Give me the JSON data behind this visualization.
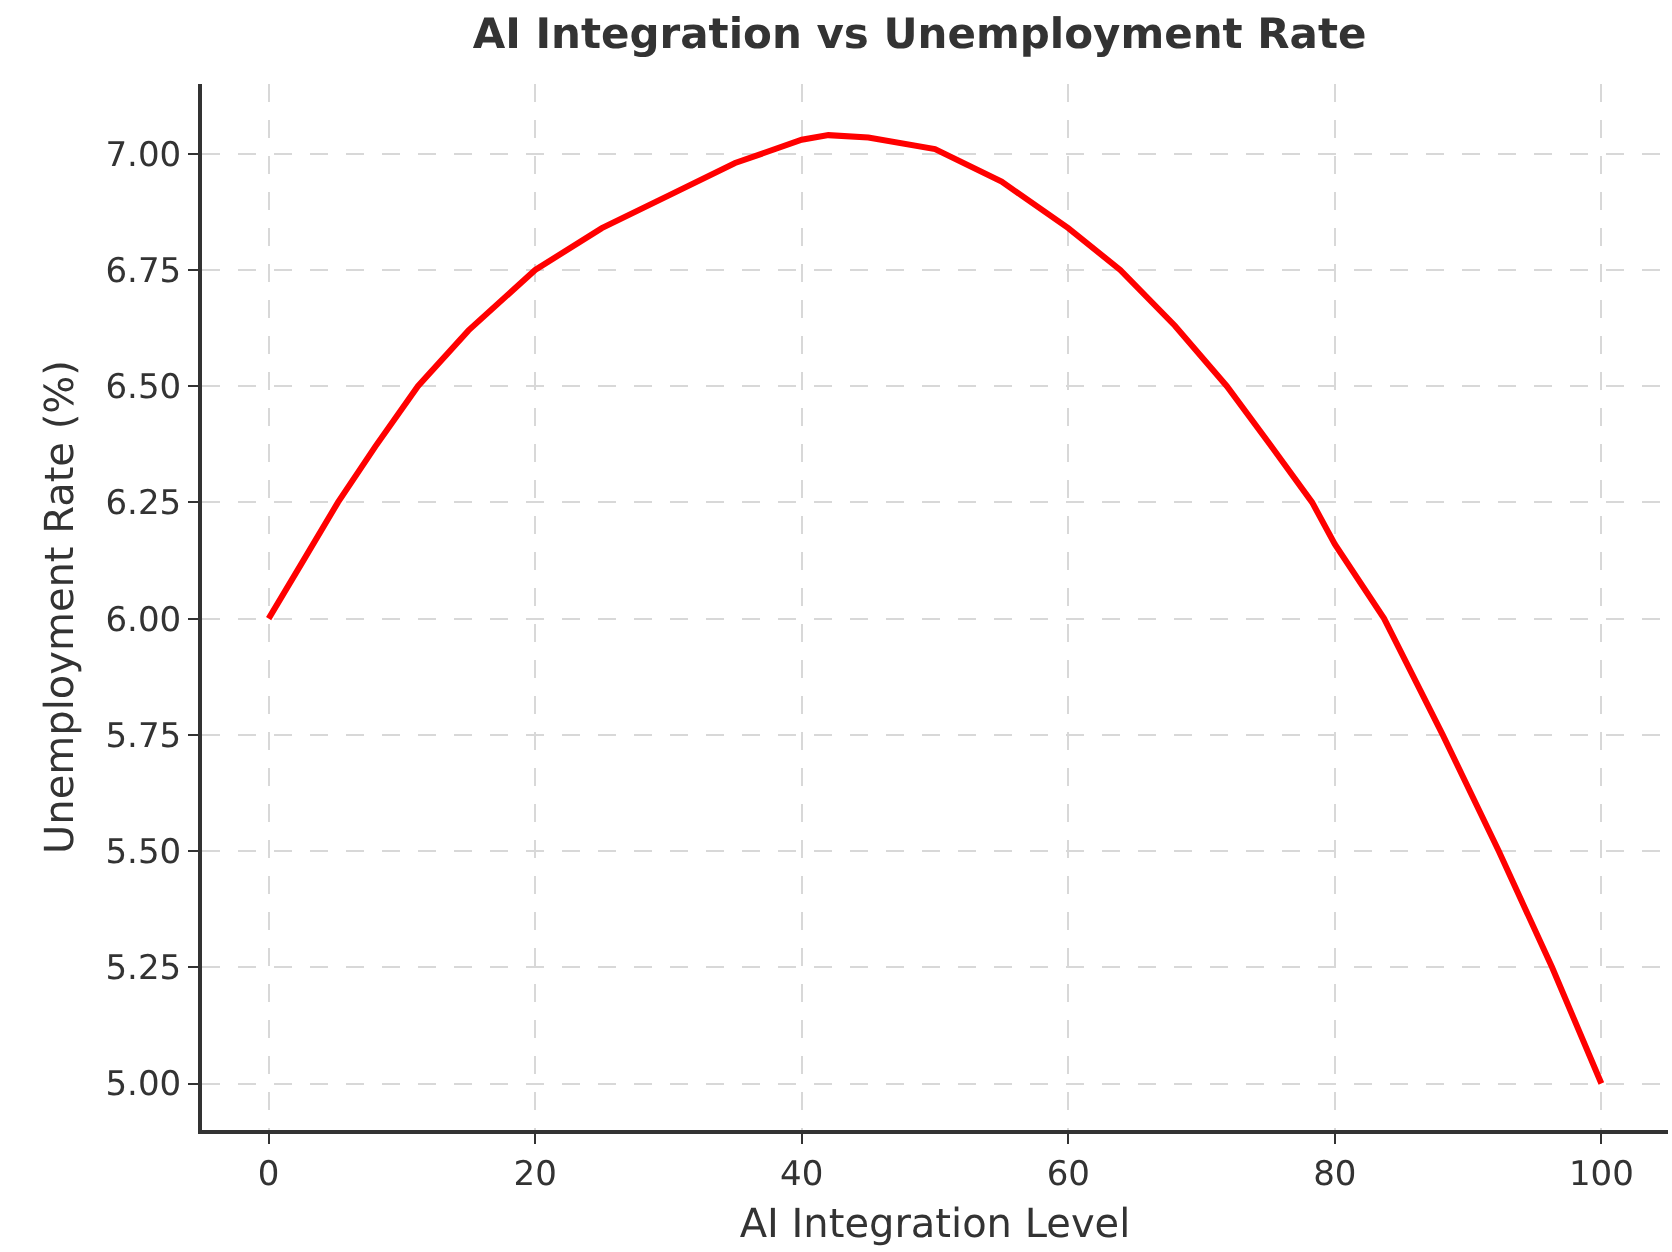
{
  "chart_data": {
    "type": "line",
    "title": "AI Integration vs Unemployment Rate",
    "xlabel": "AI Integration Level",
    "ylabel": "Unemployment Rate (%)",
    "series": [
      {
        "color": "#ff0000",
        "x": [
          0,
          2.5,
          5.2,
          8,
          11.2,
          15,
          20,
          25,
          30,
          35,
          40,
          42,
          45,
          50,
          55,
          60,
          63.9,
          68,
          71.9,
          75,
          78.3,
          80,
          83.7,
          88.1,
          92.3,
          96.3,
          100
        ],
        "values": [
          6.0,
          6.12,
          6.25,
          6.37,
          6.5,
          6.62,
          6.75,
          6.84,
          6.91,
          6.98,
          7.03,
          7.04,
          7.035,
          7.01,
          6.94,
          6.84,
          6.75,
          6.63,
          6.5,
          6.38,
          6.25,
          6.16,
          6.0,
          5.75,
          5.5,
          5.25,
          5.0
        ]
      }
    ],
    "xlim": [
      -5,
      105
    ],
    "xticks": [
      0,
      20,
      40,
      60,
      80,
      100
    ],
    "ylim": [
      4.9,
      7.15
    ],
    "yticks": [
      {
        "value": 5,
        "label": "5.00"
      },
      {
        "value": 5.25,
        "label": "5.25"
      },
      {
        "value": 5.5,
        "label": "5.50"
      },
      {
        "value": 5.75,
        "label": "5.75"
      },
      {
        "value": 6,
        "label": "6.00"
      },
      {
        "value": 6.25,
        "label": "6.25"
      },
      {
        "value": 6.5,
        "label": "6.50"
      },
      {
        "value": 6.75,
        "label": "6.75"
      },
      {
        "value": 7,
        "label": "7.00"
      }
    ],
    "grid": true,
    "marker": "none",
    "line_style": "solid"
  }
}
